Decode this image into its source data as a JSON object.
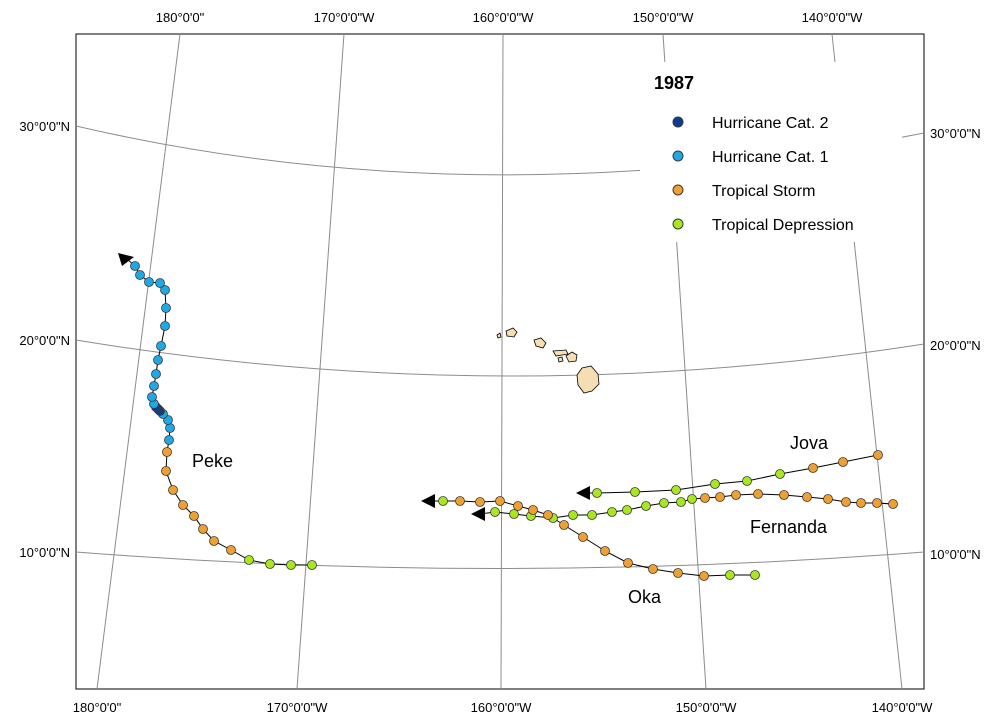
{
  "map": {
    "legend": {
      "title": "1987",
      "items": [
        {
          "label": "Hurricane Cat. 2",
          "color": "#0b3d91",
          "icon": "dot-icon"
        },
        {
          "label": "Hurricane Cat. 1",
          "color": "#1ea8e6",
          "icon": "dot-icon"
        },
        {
          "label": "Tropical Storm",
          "color": "#f0a030",
          "icon": "dot-icon"
        },
        {
          "label": "Tropical Depression",
          "color": "#a8e61e",
          "icon": "dot-icon"
        }
      ]
    },
    "longitude_labels": [
      "180°0'0\"",
      "170°0'0\"W",
      "160°0'0\"W",
      "150°0'0\"W",
      "140°0'0\"W"
    ],
    "latitude_labels": [
      "30°0'0\"N",
      "20°0'0\"N",
      "10°0'0\"N"
    ],
    "storms": [
      {
        "name": "Peke",
        "direction": "westward"
      },
      {
        "name": "Jova",
        "direction": "westward"
      },
      {
        "name": "Fernanda",
        "direction": "westward"
      },
      {
        "name": "Oka",
        "direction": "westward"
      }
    ],
    "islands": "Hawaiian Islands",
    "colors": {
      "grid": "#8c8c8c",
      "island": "#f5deb3",
      "track": "#000000"
    }
  }
}
